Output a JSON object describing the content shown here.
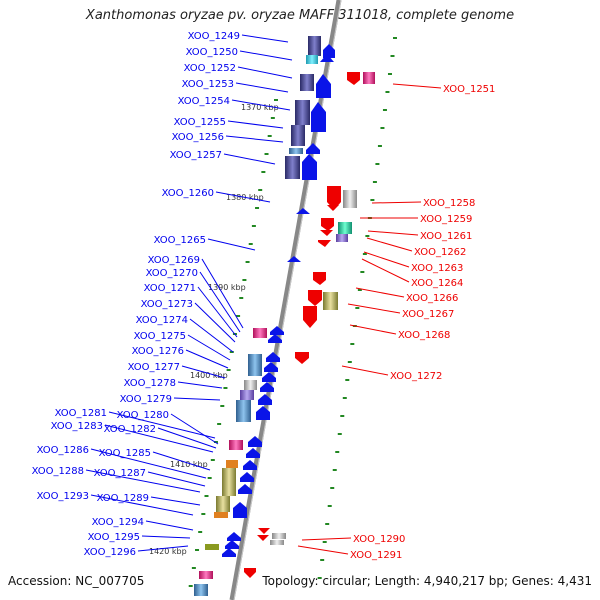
{
  "title": "Xanthomonas oryzae pv. oryzae MAFF 311018, complete genome",
  "footer": {
    "accession": "Accession: NC_007705",
    "topology": "Topology: circular; Length: 4,940,217 bp; Genes: 4,431"
  },
  "colors": {
    "forward_label": "#0000ee",
    "reverse_label": "#ee0000",
    "backbone": "#888888",
    "tick": "#228822"
  },
  "kbp_marks": [
    "1370 kbp",
    "1380 kbp",
    "1390 kbp",
    "1400 kbp",
    "1410 kbp",
    "1420 kbp"
  ],
  "forward_genes": [
    "XOO_1249",
    "XOO_1250",
    "XOO_1252",
    "XOO_1253",
    "XOO_1254",
    "XOO_1255",
    "XOO_1256",
    "XOO_1257",
    "XOO_1260",
    "XOO_1265",
    "XOO_1269",
    "XOO_1270",
    "XOO_1271",
    "XOO_1273",
    "XOO_1274",
    "XOO_1275",
    "XOO_1276",
    "XOO_1277",
    "XOO_1278",
    "XOO_1279",
    "XOO_1281",
    "XOO_1280",
    "XOO_1283",
    "XOO_1282",
    "XOO_1286",
    "XOO_1285",
    "XOO_1288",
    "XOO_1287",
    "XOO_1293",
    "XOO_1289",
    "XOO_1294",
    "XOO_1295",
    "XOO_1296"
  ],
  "reverse_genes": [
    "XOO_1251",
    "XOO_1258",
    "XOO_1259",
    "XOO_1261",
    "XOO_1262",
    "XOO_1263",
    "XOO_1264",
    "XOO_1266",
    "XOO_1267",
    "XOO_1268",
    "XOO_1272",
    "XOO_1290",
    "XOO_1291"
  ]
}
